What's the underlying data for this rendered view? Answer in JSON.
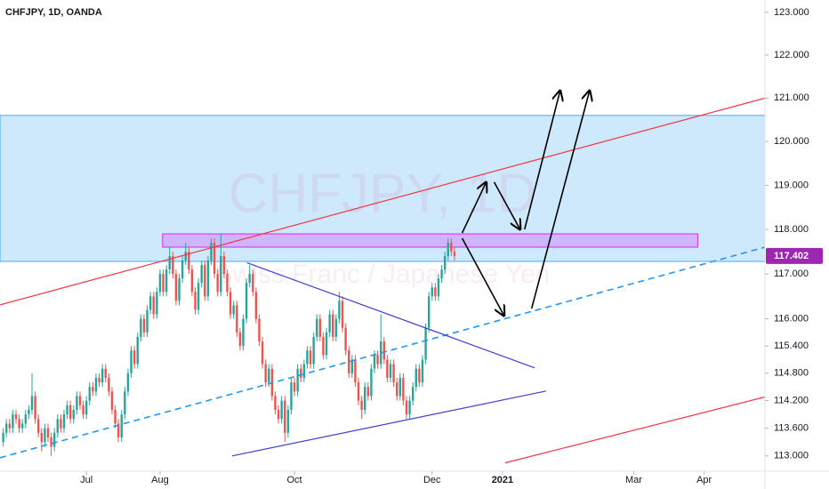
{
  "chart_data": {
    "type": "candlestick",
    "title": "CHFJPY, 1D, OANDA",
    "watermark": "CHFJPY, 1D",
    "subtitle": "Swiss Franc / Japanese Yen",
    "log_scale": true,
    "ylim": [
      112.67,
      123.29
    ],
    "xlim": [
      -1,
      238
    ],
    "yticks": [
      {
        "value": 123,
        "label": "123.000"
      },
      {
        "value": 122,
        "label": "122.000"
      },
      {
        "value": 121,
        "label": "121.000"
      },
      {
        "value": 120,
        "label": "120.000"
      },
      {
        "value": 119,
        "label": "119.000"
      },
      {
        "value": 118,
        "label": "118.000"
      },
      {
        "value": 117,
        "label": "117.000"
      },
      {
        "value": 116,
        "label": "116.000"
      },
      {
        "value": 115.4,
        "label": "115.400"
      },
      {
        "value": 114.8,
        "label": "114.800"
      },
      {
        "value": 114.2,
        "label": "114.200"
      },
      {
        "value": 113.6,
        "label": "113.600"
      },
      {
        "value": 113,
        "label": "113.000"
      }
    ],
    "xticks": [
      {
        "value": 26,
        "label": "Jul"
      },
      {
        "value": 49,
        "label": "Aug"
      },
      {
        "value": 91,
        "label": "Oct"
      },
      {
        "value": 134,
        "label": "Dec"
      },
      {
        "value": 156,
        "label": "2021"
      },
      {
        "value": 197,
        "label": "Mar"
      },
      {
        "value": 219,
        "label": "Apr"
      }
    ],
    "series": [
      {
        "up_color": "#26a69a",
        "down_color": "#ef5350",
        "ohlc": [
          [
            113.3,
            113.6,
            113.2,
            113.5
          ],
          [
            113.5,
            113.8,
            113.4,
            113.7
          ],
          [
            113.7,
            113.8,
            113.5,
            113.6
          ],
          [
            113.6,
            114.0,
            113.5,
            113.9
          ],
          [
            113.9,
            114.0,
            113.7,
            113.8
          ],
          [
            113.8,
            113.9,
            113.5,
            113.6
          ],
          [
            113.6,
            113.8,
            113.5,
            113.7
          ],
          [
            113.7,
            114.0,
            113.6,
            113.9
          ],
          [
            113.9,
            114.1,
            113.8,
            114.0
          ],
          [
            114.0,
            114.8,
            113.9,
            114.3
          ],
          [
            114.3,
            114.4,
            113.7,
            113.8
          ],
          [
            113.8,
            113.9,
            113.4,
            113.5
          ],
          [
            113.5,
            113.6,
            113.1,
            113.3
          ],
          [
            113.3,
            113.7,
            113.2,
            113.6
          ],
          [
            113.6,
            113.7,
            113.3,
            113.4
          ],
          [
            113.4,
            113.5,
            113.0,
            113.2
          ],
          [
            113.2,
            113.6,
            113.1,
            113.5
          ],
          [
            113.5,
            113.9,
            113.4,
            113.8
          ],
          [
            113.8,
            113.9,
            113.5,
            113.6
          ],
          [
            113.6,
            114.0,
            113.5,
            113.9
          ],
          [
            113.9,
            114.2,
            113.8,
            114.1
          ],
          [
            114.1,
            114.2,
            113.7,
            113.8
          ],
          [
            113.8,
            114.1,
            113.7,
            114.0
          ],
          [
            114.0,
            114.4,
            113.9,
            114.3
          ],
          [
            114.3,
            114.4,
            114.0,
            114.1
          ],
          [
            114.1,
            114.2,
            113.8,
            113.9
          ],
          [
            113.9,
            114.3,
            113.8,
            114.2
          ],
          [
            114.2,
            114.6,
            114.1,
            114.5
          ],
          [
            114.5,
            114.6,
            114.3,
            114.4
          ],
          [
            114.4,
            114.8,
            114.3,
            114.7
          ],
          [
            114.7,
            114.8,
            114.5,
            114.6
          ],
          [
            114.6,
            115.0,
            114.5,
            114.9
          ],
          [
            114.9,
            115.0,
            114.6,
            114.7
          ],
          [
            114.7,
            114.8,
            114.3,
            114.4
          ],
          [
            114.4,
            114.5,
            113.9,
            114.0
          ],
          [
            114.0,
            114.1,
            113.6,
            113.7
          ],
          [
            113.7,
            113.8,
            113.3,
            113.4
          ],
          [
            113.4,
            114.0,
            113.3,
            113.9
          ],
          [
            113.9,
            114.5,
            113.8,
            114.4
          ],
          [
            114.4,
            114.9,
            114.3,
            114.8
          ],
          [
            114.8,
            115.4,
            114.7,
            115.3
          ],
          [
            115.3,
            115.4,
            114.9,
            115.0
          ],
          [
            115.0,
            115.7,
            114.9,
            115.6
          ],
          [
            115.6,
            116.1,
            115.5,
            116.0
          ],
          [
            116.0,
            116.1,
            115.6,
            115.7
          ],
          [
            115.7,
            116.3,
            115.6,
            116.2
          ],
          [
            116.2,
            116.6,
            116.1,
            116.5
          ],
          [
            116.5,
            116.6,
            116.0,
            116.1
          ],
          [
            116.1,
            116.7,
            116.0,
            116.6
          ],
          [
            116.6,
            117.1,
            116.5,
            117.0
          ],
          [
            117.0,
            117.1,
            116.5,
            116.6
          ],
          [
            116.6,
            117.2,
            116.5,
            117.1
          ],
          [
            117.1,
            117.6,
            117.0,
            117.4
          ],
          [
            117.4,
            117.5,
            116.9,
            117.0
          ],
          [
            117.0,
            117.1,
            116.3,
            116.4
          ],
          [
            116.4,
            117.0,
            116.3,
            116.9
          ],
          [
            116.9,
            117.4,
            116.8,
            117.3
          ],
          [
            117.3,
            117.7,
            117.2,
            117.5
          ],
          [
            117.5,
            117.6,
            117.0,
            117.1
          ],
          [
            117.1,
            117.2,
            116.5,
            116.6
          ],
          [
            116.6,
            116.7,
            116.1,
            116.2
          ],
          [
            116.2,
            116.9,
            116.1,
            116.8
          ],
          [
            116.8,
            117.3,
            116.7,
            117.2
          ],
          [
            117.2,
            117.3,
            116.4,
            116.5
          ],
          [
            116.5,
            117.4,
            116.4,
            117.3
          ],
          [
            117.3,
            117.8,
            117.2,
            117.7
          ],
          [
            117.7,
            117.8,
            116.9,
            117.0
          ],
          [
            117.0,
            117.1,
            116.5,
            116.6
          ],
          [
            116.6,
            117.9,
            116.5,
            117.4
          ],
          [
            117.4,
            117.5,
            116.9,
            117.0
          ],
          [
            117.0,
            117.1,
            116.5,
            116.6
          ],
          [
            116.6,
            116.7,
            116.0,
            116.1
          ],
          [
            116.1,
            116.4,
            116.0,
            116.3
          ],
          [
            116.3,
            116.4,
            115.6,
            115.7
          ],
          [
            115.7,
            115.8,
            115.3,
            115.4
          ],
          [
            115.4,
            116.1,
            115.3,
            116.0
          ],
          [
            116.0,
            116.9,
            115.9,
            116.8
          ],
          [
            116.8,
            117.2,
            116.7,
            117.0
          ],
          [
            117.0,
            117.1,
            116.5,
            116.6
          ],
          [
            116.6,
            116.7,
            115.9,
            116.0
          ],
          [
            116.0,
            116.1,
            115.4,
            115.5
          ],
          [
            115.5,
            115.6,
            114.9,
            115.0
          ],
          [
            115.0,
            115.1,
            114.5,
            114.6
          ],
          [
            114.6,
            115.0,
            114.5,
            114.9
          ],
          [
            114.9,
            115.0,
            114.2,
            114.3
          ],
          [
            114.3,
            114.4,
            113.9,
            114.0
          ],
          [
            114.0,
            114.1,
            113.7,
            113.8
          ],
          [
            113.8,
            114.3,
            113.7,
            114.2
          ],
          [
            114.2,
            114.3,
            113.3,
            113.5
          ],
          [
            113.5,
            114.1,
            113.4,
            114.0
          ],
          [
            114.0,
            114.7,
            113.9,
            114.6
          ],
          [
            114.6,
            114.7,
            114.3,
            114.4
          ],
          [
            114.4,
            115.0,
            114.3,
            114.9
          ],
          [
            114.9,
            115.0,
            114.6,
            114.7
          ],
          [
            114.7,
            115.1,
            114.6,
            115.0
          ],
          [
            115.0,
            115.4,
            114.9,
            115.3
          ],
          [
            115.3,
            115.4,
            114.9,
            115.0
          ],
          [
            115.0,
            115.7,
            114.9,
            115.6
          ],
          [
            115.6,
            116.1,
            115.5,
            116.0
          ],
          [
            116.0,
            116.1,
            115.5,
            115.6
          ],
          [
            115.6,
            115.7,
            115.1,
            115.2
          ],
          [
            115.2,
            115.8,
            115.1,
            115.7
          ],
          [
            115.7,
            116.2,
            115.6,
            116.1
          ],
          [
            116.1,
            116.2,
            115.5,
            115.6
          ],
          [
            115.6,
            116.1,
            115.5,
            116.0
          ],
          [
            116.0,
            116.6,
            115.9,
            116.4
          ],
          [
            116.4,
            116.5,
            115.7,
            115.8
          ],
          [
            115.8,
            115.9,
            115.2,
            115.3
          ],
          [
            115.3,
            115.4,
            114.7,
            114.8
          ],
          [
            114.8,
            115.2,
            114.7,
            115.1
          ],
          [
            115.1,
            115.2,
            114.5,
            114.6
          ],
          [
            114.6,
            114.7,
            114.1,
            114.2
          ],
          [
            114.2,
            114.3,
            113.8,
            114.0
          ],
          [
            114.0,
            114.6,
            113.9,
            114.5
          ],
          [
            114.5,
            114.6,
            114.2,
            114.3
          ],
          [
            114.3,
            115.0,
            114.2,
            114.9
          ],
          [
            114.9,
            115.3,
            114.8,
            115.2
          ],
          [
            115.2,
            115.3,
            114.9,
            115.0
          ],
          [
            115.0,
            116.1,
            114.9,
            115.5
          ],
          [
            115.5,
            115.6,
            115.0,
            115.1
          ],
          [
            115.1,
            115.2,
            114.6,
            114.7
          ],
          [
            114.7,
            115.1,
            114.6,
            115.0
          ],
          [
            115.0,
            115.1,
            114.5,
            114.6
          ],
          [
            114.6,
            114.7,
            114.2,
            114.3
          ],
          [
            114.3,
            114.8,
            114.2,
            114.7
          ],
          [
            114.7,
            114.8,
            114.1,
            114.2
          ],
          [
            114.2,
            114.3,
            113.8,
            113.9
          ],
          [
            113.9,
            114.3,
            113.8,
            114.2
          ],
          [
            114.2,
            114.6,
            114.1,
            114.5
          ],
          [
            114.5,
            115.0,
            114.4,
            114.9
          ],
          [
            114.9,
            115.0,
            114.5,
            114.6
          ],
          [
            114.6,
            115.2,
            114.5,
            115.1
          ],
          [
            115.1,
            115.9,
            115.0,
            115.8
          ],
          [
            115.8,
            116.6,
            115.7,
            116.5
          ],
          [
            116.5,
            116.8,
            116.4,
            116.7
          ],
          [
            116.7,
            116.8,
            116.4,
            116.5
          ],
          [
            116.5,
            117.0,
            116.4,
            116.9
          ],
          [
            116.9,
            117.2,
            116.8,
            117.1
          ],
          [
            117.1,
            117.5,
            117.0,
            117.4
          ],
          [
            117.4,
            117.8,
            117.3,
            117.7
          ],
          [
            117.7,
            117.8,
            117.4,
            117.5
          ],
          [
            117.5,
            117.6,
            117.3,
            117.4
          ]
        ]
      }
    ],
    "last_price": 117.402,
    "last_price_color": "#9c27b0",
    "zones": [
      {
        "x": [
          -1,
          238
        ],
        "y": [
          117.28,
          120.6
        ],
        "color": "#2196f3"
      },
      {
        "x": [
          49.8,
          217
        ],
        "y": [
          117.6,
          117.9
        ],
        "color": "#d500f9"
      }
    ],
    "lines": [
      {
        "points": [
          [
            -1,
            116.31
          ],
          [
            238,
            121.0
          ]
        ],
        "color": "#f23645"
      },
      {
        "points": [
          [
            156.8,
            112.85
          ],
          [
            238,
            114.28
          ]
        ],
        "color": "#f23645"
      },
      {
        "points": [
          [
            -1,
            112.96
          ],
          [
            238,
            117.6
          ]
        ],
        "color": "#2196f3",
        "dashed": true
      },
      {
        "points": [
          [
            76.2,
            117.25
          ],
          [
            166,
            114.92
          ]
        ],
        "color": "#3f3fd1"
      },
      {
        "points": [
          [
            71.5,
            113.0
          ],
          [
            169.6,
            114.41
          ]
        ],
        "color": "#3f3fd1"
      },
      {
        "points": [
          [
            143.4,
            117.92
          ],
          [
            150.9,
            119.07
          ]
        ],
        "color": "#000000",
        "arrow": true
      },
      {
        "points": [
          [
            153.4,
            119.07
          ],
          [
            161.5,
            118.0
          ]
        ],
        "color": "#000000",
        "arrow": true
      },
      {
        "points": [
          [
            143.4,
            117.8
          ],
          [
            156.5,
            116.07
          ]
        ],
        "color": "#000000",
        "arrow": true
      },
      {
        "points": [
          [
            162.9,
            118.0
          ],
          [
            174,
            121.17
          ]
        ],
        "color": "#000000",
        "arrow": true
      },
      {
        "points": [
          [
            165.1,
            116.23
          ],
          [
            183.2,
            121.17
          ]
        ],
        "color": "#000000",
        "arrow": true
      }
    ]
  }
}
